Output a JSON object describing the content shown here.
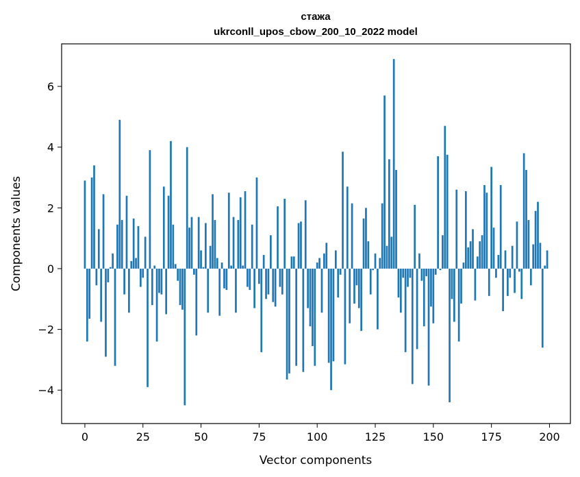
{
  "chart_data": {
    "type": "bar",
    "title_line1": "стажа",
    "title_line2": "ukrconll_upos_cbow_200_10_2022 model",
    "xlabel": "Vector components",
    "ylabel": "Components values",
    "xlim": [
      -10,
      209
    ],
    "ylim": [
      -5.1,
      7.4
    ],
    "xticks": [
      0,
      25,
      50,
      75,
      100,
      125,
      150,
      175,
      200
    ],
    "yticks": [
      -4,
      -2,
      0,
      2,
      4,
      6
    ],
    "ytick_labels": [
      "−4",
      "−2",
      "0",
      "2",
      "4",
      "6"
    ],
    "bar_color": "#1f77b4",
    "grid": false,
    "x": [
      0,
      1,
      2,
      3,
      4,
      5,
      6,
      7,
      8,
      9,
      10,
      11,
      12,
      13,
      14,
      15,
      16,
      17,
      18,
      19,
      20,
      21,
      22,
      23,
      24,
      25,
      26,
      27,
      28,
      29,
      30,
      31,
      32,
      33,
      34,
      35,
      36,
      37,
      38,
      39,
      40,
      41,
      42,
      43,
      44,
      45,
      46,
      47,
      48,
      49,
      50,
      51,
      52,
      53,
      54,
      55,
      56,
      57,
      58,
      59,
      60,
      61,
      62,
      63,
      64,
      65,
      66,
      67,
      68,
      69,
      70,
      71,
      72,
      73,
      74,
      75,
      76,
      77,
      78,
      79,
      80,
      81,
      82,
      83,
      84,
      85,
      86,
      87,
      88,
      89,
      90,
      91,
      92,
      93,
      94,
      95,
      96,
      97,
      98,
      99,
      100,
      101,
      102,
      103,
      104,
      105,
      106,
      107,
      108,
      109,
      110,
      111,
      112,
      113,
      114,
      115,
      116,
      117,
      118,
      119,
      120,
      121,
      122,
      123,
      124,
      125,
      126,
      127,
      128,
      129,
      130,
      131,
      132,
      133,
      134,
      135,
      136,
      137,
      138,
      139,
      140,
      141,
      142,
      143,
      144,
      145,
      146,
      147,
      148,
      149,
      150,
      151,
      152,
      153,
      154,
      155,
      156,
      157,
      158,
      159,
      160,
      161,
      162,
      163,
      164,
      165,
      166,
      167,
      168,
      169,
      170,
      171,
      172,
      173,
      174,
      175,
      176,
      177,
      178,
      179,
      180,
      181,
      182,
      183,
      184,
      185,
      186,
      187,
      188,
      189,
      190,
      191,
      192,
      193,
      194,
      195,
      196,
      197,
      198,
      199
    ],
    "values": [
      2.9,
      -2.4,
      -1.65,
      3.0,
      3.4,
      -0.55,
      1.3,
      -1.75,
      2.45,
      -2.9,
      -0.45,
      0.05,
      0.5,
      -3.2,
      1.45,
      4.9,
      1.6,
      -0.85,
      2.4,
      -1.45,
      0.25,
      1.65,
      0.35,
      1.4,
      -0.6,
      -0.3,
      1.05,
      -3.9,
      3.9,
      -1.2,
      0.1,
      -2.4,
      -0.8,
      -0.85,
      2.7,
      -1.5,
      2.4,
      4.2,
      1.45,
      0.15,
      -0.4,
      -1.2,
      -1.35,
      -4.5,
      4.0,
      1.35,
      1.7,
      -0.2,
      -2.2,
      1.7,
      0.6,
      0.05,
      1.5,
      -1.45,
      0.75,
      2.45,
      1.6,
      0.35,
      -1.55,
      0.2,
      -0.65,
      -0.7,
      2.5,
      0.1,
      1.7,
      -1.45,
      1.6,
      2.35,
      0.1,
      2.55,
      -0.6,
      -0.7,
      1.45,
      -1.3,
      3.0,
      -0.5,
      -2.75,
      0.45,
      -1.0,
      -0.85,
      1.1,
      -1.1,
      -1.25,
      2.05,
      -0.6,
      -0.85,
      2.3,
      -3.65,
      -3.45,
      0.4,
      0.4,
      -3.2,
      1.5,
      1.55,
      -3.4,
      2.25,
      -1.3,
      -1.9,
      -2.55,
      -3.2,
      0.2,
      0.35,
      -1.45,
      0.5,
      0.85,
      -3.1,
      -4.0,
      -3.05,
      0.6,
      -0.95,
      -0.2,
      3.85,
      -3.15,
      2.7,
      -1.8,
      2.15,
      -1.15,
      -0.55,
      -1.3,
      -2.05,
      1.65,
      2.0,
      0.9,
      -0.85,
      -0.05,
      0.5,
      -2.0,
      0.35,
      2.15,
      5.7,
      0.75,
      3.6,
      1.05,
      6.9,
      3.25,
      -0.95,
      -1.45,
      -0.3,
      -2.75,
      -0.6,
      -0.3,
      -3.8,
      2.1,
      -2.65,
      0.5,
      -0.4,
      -1.9,
      -0.25,
      -3.85,
      -1.25,
      -1.8,
      -0.2,
      3.7,
      -0.05,
      1.1,
      4.7,
      3.75,
      -4.4,
      -1.0,
      -1.75,
      2.6,
      -2.4,
      -1.15,
      0.2,
      2.55,
      0.7,
      0.9,
      1.3,
      -1.05,
      0.4,
      0.9,
      1.1,
      2.75,
      2.5,
      -0.9,
      3.35,
      1.35,
      -0.3,
      0.45,
      2.75,
      -1.4,
      0.6,
      -0.9,
      -0.3,
      0.75,
      -0.8,
      1.55,
      -0.1,
      -1.0,
      3.8,
      3.25,
      1.6,
      -0.55,
      0.8,
      1.9,
      2.2,
      0.85,
      -2.6,
      0.1,
      0.6
    ]
  }
}
